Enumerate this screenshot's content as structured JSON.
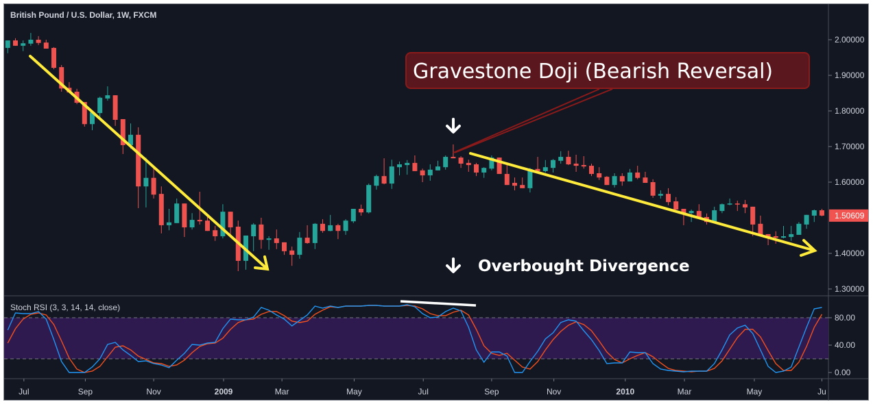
{
  "chart_data": {
    "type": "candlestick",
    "title": "British Pound / U.S. Dollar, 1W, FXCM",
    "price_axis": {
      "ticks": [
        "2.00000",
        "1.90000",
        "1.80000",
        "1.70000",
        "1.60000",
        "1.40000",
        "1.30000"
      ],
      "range": [
        1.3,
        2.0
      ]
    },
    "last_price": {
      "label": "1.50609",
      "value": 1.50609,
      "color": "#f05350"
    },
    "time_axis": {
      "ticks": [
        {
          "label": "Jul",
          "bar": 2.1,
          "bold": false
        },
        {
          "label": "Sep",
          "bar": 10.1,
          "bold": false
        },
        {
          "label": "Nov",
          "bar": 19,
          "bold": false
        },
        {
          "label": "2009",
          "bar": 28.1,
          "bold": true
        },
        {
          "label": "Mar",
          "bar": 35.7,
          "bold": false
        },
        {
          "label": "May",
          "bar": 45.1,
          "bold": false
        },
        {
          "label": "Jul",
          "bar": 54.1,
          "bold": false
        },
        {
          "label": "Sep",
          "bar": 63,
          "bold": false
        },
        {
          "label": "Nov",
          "bar": 71.1,
          "bold": false
        },
        {
          "label": "2010",
          "bar": 80.4,
          "bold": true
        },
        {
          "label": "Mar",
          "bar": 88.1,
          "bold": false
        },
        {
          "label": "May",
          "bar": 97.2,
          "bold": false
        },
        {
          "label": "Ju",
          "bar": 106,
          "bold": false
        }
      ]
    },
    "colors": {
      "up": "#26a69a",
      "down": "#ef5350",
      "background": "#131722",
      "stoch_k": "#2196f3",
      "stoch_d": "#f4511e",
      "band": "#2e1a4f",
      "trend_arrow": "#ffeb3b"
    },
    "candles_ohlc": [
      [
        1.977,
        1.998,
        1.962,
        1.998
      ],
      [
        1.998,
        2.004,
        1.983,
        1.983
      ],
      [
        1.983,
        1.998,
        1.968,
        1.99
      ],
      [
        1.989,
        2.019,
        1.983,
        2.0
      ],
      [
        2.0,
        2.01,
        1.985,
        1.991
      ],
      [
        1.992,
        2.0,
        1.975,
        1.975
      ],
      [
        1.977,
        1.979,
        1.917,
        1.921
      ],
      [
        1.923,
        1.929,
        1.854,
        1.863
      ],
      [
        1.865,
        1.881,
        1.852,
        1.852
      ],
      [
        1.854,
        1.862,
        1.819,
        1.823
      ],
      [
        1.825,
        1.825,
        1.756,
        1.763
      ],
      [
        1.763,
        1.8,
        1.746,
        1.796
      ],
      [
        1.794,
        1.84,
        1.775,
        1.837
      ],
      [
        1.835,
        1.869,
        1.829,
        1.844
      ],
      [
        1.844,
        1.844,
        1.758,
        1.775
      ],
      [
        1.777,
        1.777,
        1.679,
        1.704
      ],
      [
        1.704,
        1.765,
        1.694,
        1.733
      ],
      [
        1.733,
        1.754,
        1.527,
        1.588
      ],
      [
        1.588,
        1.669,
        1.529,
        1.612
      ],
      [
        1.612,
        1.64,
        1.554,
        1.565
      ],
      [
        1.567,
        1.588,
        1.456,
        1.479
      ],
      [
        1.479,
        1.525,
        1.465,
        1.487
      ],
      [
        1.485,
        1.554,
        1.485,
        1.54
      ],
      [
        1.54,
        1.54,
        1.446,
        1.473
      ],
      [
        1.473,
        1.513,
        1.467,
        1.494
      ],
      [
        1.494,
        1.573,
        1.481,
        1.49
      ],
      [
        1.492,
        1.502,
        1.463,
        1.463
      ],
      [
        1.465,
        1.477,
        1.435,
        1.448
      ],
      [
        1.448,
        1.538,
        1.442,
        1.517
      ],
      [
        1.517,
        1.517,
        1.45,
        1.473
      ],
      [
        1.475,
        1.492,
        1.35,
        1.379
      ],
      [
        1.379,
        1.45,
        1.354,
        1.45
      ],
      [
        1.448,
        1.485,
        1.406,
        1.481
      ],
      [
        1.481,
        1.5,
        1.413,
        1.438
      ],
      [
        1.438,
        1.448,
        1.41,
        1.442
      ],
      [
        1.442,
        1.467,
        1.412,
        1.429
      ],
      [
        1.431,
        1.431,
        1.396,
        1.406
      ],
      [
        1.408,
        1.419,
        1.365,
        1.396
      ],
      [
        1.396,
        1.46,
        1.385,
        1.444
      ],
      [
        1.444,
        1.479,
        1.427,
        1.429
      ],
      [
        1.429,
        1.485,
        1.412,
        1.483
      ],
      [
        1.483,
        1.496,
        1.458,
        1.463
      ],
      [
        1.463,
        1.508,
        1.462,
        1.479
      ],
      [
        1.479,
        1.483,
        1.44,
        1.463
      ],
      [
        1.463,
        1.496,
        1.452,
        1.492
      ],
      [
        1.49,
        1.525,
        1.485,
        1.525
      ],
      [
        1.525,
        1.537,
        1.506,
        1.515
      ],
      [
        1.515,
        1.596,
        1.512,
        1.592
      ],
      [
        1.59,
        1.621,
        1.579,
        1.617
      ],
      [
        1.617,
        1.667,
        1.594,
        1.596
      ],
      [
        1.596,
        1.663,
        1.581,
        1.644
      ],
      [
        1.642,
        1.658,
        1.619,
        1.65
      ],
      [
        1.648,
        1.662,
        1.621,
        1.654
      ],
      [
        1.654,
        1.675,
        1.631,
        1.631
      ],
      [
        1.633,
        1.638,
        1.6,
        1.619
      ],
      [
        1.619,
        1.65,
        1.604,
        1.635
      ],
      [
        1.633,
        1.66,
        1.633,
        1.644
      ],
      [
        1.642,
        1.675,
        1.635,
        1.671
      ],
      [
        1.671,
        1.706,
        1.667,
        1.667
      ],
      [
        1.669,
        1.673,
        1.64,
        1.652
      ],
      [
        1.654,
        1.663,
        1.629,
        1.648
      ],
      [
        1.65,
        1.654,
        1.617,
        1.627
      ],
      [
        1.627,
        1.642,
        1.612,
        1.64
      ],
      [
        1.638,
        1.675,
        1.633,
        1.669
      ],
      [
        1.669,
        1.669,
        1.623,
        1.623
      ],
      [
        1.623,
        1.648,
        1.592,
        1.592
      ],
      [
        1.598,
        1.613,
        1.577,
        1.59
      ],
      [
        1.592,
        1.613,
        1.583,
        1.583
      ],
      [
        1.583,
        1.64,
        1.571,
        1.637
      ],
      [
        1.637,
        1.671,
        1.625,
        1.631
      ],
      [
        1.631,
        1.662,
        1.627,
        1.642
      ],
      [
        1.64,
        1.665,
        1.627,
        1.662
      ],
      [
        1.66,
        1.687,
        1.652,
        1.671
      ],
      [
        1.671,
        1.688,
        1.648,
        1.65
      ],
      [
        1.652,
        1.677,
        1.629,
        1.646
      ],
      [
        1.648,
        1.673,
        1.638,
        1.644
      ],
      [
        1.646,
        1.652,
        1.617,
        1.623
      ],
      [
        1.625,
        1.642,
        1.606,
        1.613
      ],
      [
        1.615,
        1.617,
        1.592,
        1.592
      ],
      [
        1.592,
        1.625,
        1.585,
        1.617
      ],
      [
        1.617,
        1.625,
        1.59,
        1.602
      ],
      [
        1.602,
        1.637,
        1.602,
        1.627
      ],
      [
        1.627,
        1.646,
        1.608,
        1.612
      ],
      [
        1.613,
        1.629,
        1.598,
        1.598
      ],
      [
        1.6,
        1.608,
        1.556,
        1.562
      ],
      [
        1.562,
        1.577,
        1.554,
        1.567
      ],
      [
        1.567,
        1.583,
        1.535,
        1.544
      ],
      [
        1.546,
        1.558,
        1.515,
        1.523
      ],
      [
        1.525,
        1.525,
        1.479,
        1.513
      ],
      [
        1.513,
        1.523,
        1.488,
        1.519
      ],
      [
        1.519,
        1.538,
        1.498,
        1.5
      ],
      [
        1.502,
        1.512,
        1.481,
        1.488
      ],
      [
        1.488,
        1.531,
        1.488,
        1.521
      ],
      [
        1.519,
        1.54,
        1.513,
        1.538
      ],
      [
        1.537,
        1.554,
        1.535,
        1.54
      ],
      [
        1.54,
        1.548,
        1.519,
        1.537
      ],
      [
        1.538,
        1.55,
        1.513,
        1.529
      ],
      [
        1.531,
        1.531,
        1.448,
        1.481
      ],
      [
        1.483,
        1.506,
        1.448,
        1.45
      ],
      [
        1.454,
        1.454,
        1.423,
        1.446
      ],
      [
        1.448,
        1.462,
        1.427,
        1.444
      ],
      [
        1.444,
        1.477,
        1.442,
        1.448
      ],
      [
        1.446,
        1.477,
        1.435,
        1.454
      ],
      [
        1.452,
        1.488,
        1.452,
        1.483
      ],
      [
        1.481,
        1.508,
        1.469,
        1.508
      ],
      [
        1.506,
        1.523,
        1.488,
        1.521
      ],
      [
        1.521,
        1.525,
        1.504,
        1.50609
      ]
    ],
    "stoch_rsi": {
      "label": "Stoch RSI (3, 3, 14, 14, close)",
      "axis_ticks": [
        "80.00",
        "40.00",
        "0.00"
      ],
      "bands": [
        20,
        80
      ],
      "range": [
        0,
        100
      ],
      "k": [
        62,
        87,
        86,
        86,
        89,
        78,
        48,
        16,
        0,
        0,
        0,
        8,
        20,
        41,
        44,
        33,
        25,
        16,
        17,
        13,
        11,
        7,
        18,
        28,
        41,
        40,
        43,
        44,
        64,
        78,
        77,
        77,
        81,
        95,
        91,
        84,
        78,
        68,
        76,
        84,
        97,
        94,
        97,
        95,
        97,
        97,
        97,
        98,
        98,
        97,
        97,
        97,
        99,
        96,
        86,
        80,
        81,
        89,
        94,
        90,
        66,
        33,
        15,
        30,
        30,
        24,
        0,
        0,
        16,
        31,
        49,
        58,
        73,
        77,
        75,
        61,
        48,
        32,
        13,
        14,
        14,
        30,
        29,
        29,
        13,
        5,
        3,
        2,
        1,
        2,
        2,
        2,
        13,
        33,
        55,
        65,
        69,
        57,
        33,
        9,
        0,
        2,
        8,
        37,
        66,
        93,
        95
      ],
      "d": [
        43,
        64,
        78,
        85,
        87,
        84,
        70,
        46,
        21,
        5,
        0,
        2,
        9,
        23,
        37,
        39,
        33,
        24,
        19,
        14,
        13,
        9,
        11,
        18,
        29,
        38,
        42,
        43,
        50,
        63,
        73,
        77,
        78,
        85,
        89,
        89,
        83,
        75,
        73,
        75,
        85,
        91,
        96,
        95,
        97,
        97,
        97,
        98,
        98,
        97,
        97,
        97,
        98,
        97,
        93,
        86,
        83,
        83,
        88,
        91,
        84,
        63,
        39,
        28,
        25,
        28,
        18,
        8,
        5,
        16,
        33,
        48,
        60,
        69,
        74,
        70,
        61,
        46,
        30,
        19,
        14,
        20,
        25,
        29,
        23,
        14,
        6,
        3,
        2,
        1,
        2,
        2,
        6,
        17,
        34,
        51,
        63,
        63,
        52,
        32,
        13,
        3,
        3,
        15,
        38,
        66,
        85
      ]
    },
    "annotations": {
      "callout": "Gravestone Doji (Bearish Reversal)",
      "divergence_label": "Overbought Divergence",
      "callout_fill": "#5a171d",
      "callout_border": "#8b1a1a"
    }
  }
}
